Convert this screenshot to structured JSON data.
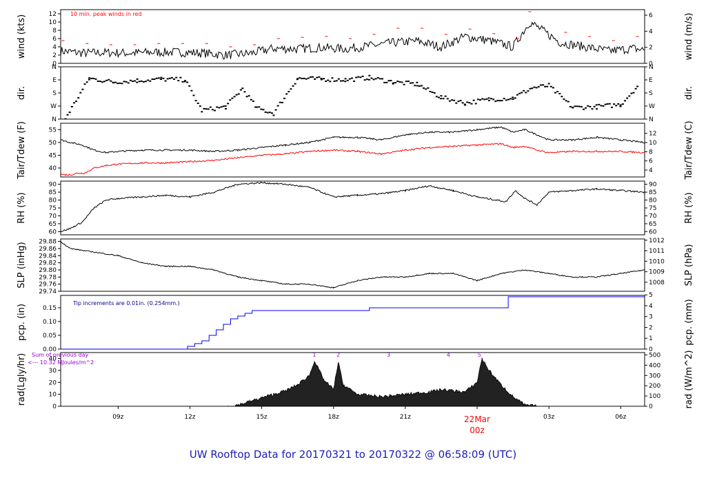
{
  "title": "UW Rooftop Data for 20170321  to  20170322 @ 06:58:09  (UTC)",
  "x_ticks": [
    {
      "label": "09z",
      "hour": 9
    },
    {
      "label": "12z",
      "hour": 12
    },
    {
      "label": "15z",
      "hour": 15
    },
    {
      "label": "18z",
      "hour": 18
    },
    {
      "label": "21z",
      "hour": 21
    },
    {
      "label": "03z",
      "hour": 27
    },
    {
      "label": "06z",
      "hour": 30
    }
  ],
  "date_marker": {
    "day": "22Mar",
    "hour_label": "00z",
    "hour": 24,
    "color": "#ff0000"
  },
  "colors": {
    "primary": "#000000",
    "peak": "#ff0000",
    "dewpoint": "#ff0000",
    "precip": "#0000ff",
    "precip_note": "#00008b",
    "rad_note": "#9400d3",
    "title": "#1c1cb8"
  },
  "chart_data": [
    {
      "id": "wind",
      "type": "line",
      "ylabel_left": "wind (kts)",
      "ylabel_right": "wind (m/s)",
      "note": "10 min. peak winds in red",
      "ylim": [
        0,
        13
      ],
      "left_ticks": [
        "0",
        "2",
        "4",
        "6",
        "8",
        "10",
        "12"
      ],
      "right_ylim": [
        0,
        6.69
      ],
      "right_ticks": [
        "0",
        "2",
        "4",
        "6"
      ],
      "series": [
        {
          "x": [
            6.6,
            7.5,
            8.5,
            9.5,
            10.5,
            11.5,
            12.5,
            13.5,
            14.5,
            15.5,
            16.5,
            17.5,
            18.5,
            19.5,
            20.5,
            21.5,
            22.5,
            23.5,
            24.5,
            25.5,
            26.2,
            27.5,
            28.5,
            29.5,
            30.5,
            31.0
          ],
          "values": [
            3.0,
            2.5,
            2.6,
            2.5,
            2.7,
            2.7,
            2.5,
            2.0,
            2.4,
            3.6,
            3.5,
            3.8,
            3.5,
            4.2,
            5.0,
            5.4,
            4.0,
            6.5,
            5.5,
            4.0,
            10.0,
            5.0,
            4.0,
            3.0,
            3.6,
            3.2
          ]
        }
      ],
      "peaks": {
        "x": [
          6.7,
          7.7,
          8.7,
          9.7,
          10.7,
          11.7,
          12.7,
          13.7,
          14.7,
          15.7,
          16.7,
          17.7,
          18.7,
          19.7,
          20.7,
          21.7,
          22.7,
          23.7,
          24.7,
          25.7,
          26.2,
          27.7,
          28.7,
          29.7,
          30.7
        ],
        "values": [
          5.5,
          4.8,
          4.5,
          4.5,
          4.8,
          4.8,
          4.8,
          4.0,
          4.5,
          6.0,
          6.3,
          6.5,
          6.0,
          7.0,
          8.5,
          8.5,
          7.0,
          8.3,
          7.2,
          6.0,
          12.5,
          7.5,
          6.5,
          5.5,
          6.5
        ]
      }
    },
    {
      "id": "dir",
      "type": "scatter",
      "ylabel_left": "dir.",
      "ylabel_right": "dir.",
      "ylim": [
        0,
        360
      ],
      "left_ticks": [
        "N",
        "W",
        "S",
        "E",
        "N"
      ],
      "right_ticks": [
        "N",
        "W",
        "S",
        "E",
        "N"
      ],
      "series": [
        {
          "x": [
            6.8,
            7.8,
            8.8,
            9.8,
            10.8,
            11.8,
            12.5,
            13.5,
            14.2,
            14.8,
            15.5,
            16.5,
            17.5,
            18.5,
            19.5,
            20.5,
            21.5,
            22.5,
            23.5,
            24.5,
            25.5,
            26.3,
            27.0,
            28.0,
            29.0,
            30.0,
            30.7
          ],
          "values": [
            5,
            280,
            255,
            265,
            275,
            270,
            60,
            85,
            210,
            75,
            40,
            280,
            275,
            270,
            285,
            255,
            240,
            150,
            110,
            135,
            145,
            215,
            230,
            80,
            85,
            100,
            225
          ]
        }
      ]
    },
    {
      "id": "temp",
      "type": "line",
      "ylabel_left": "Tair/Tdew (F)",
      "ylabel_right": "Tair/Tdew (C)",
      "ylim": [
        36.5,
        57.5
      ],
      "left_ticks": [
        "40",
        "45",
        "50",
        "55"
      ],
      "right_ylim": [
        2.5,
        14.2
      ],
      "right_ticks": [
        "4",
        "6",
        "8",
        "10",
        "12"
      ],
      "series": [
        {
          "x": [
            6.6,
            7.0,
            7.5,
            8.0,
            8.5,
            9.0,
            10.0,
            11.0,
            12.0,
            13.0,
            14.0,
            15.0,
            16.0,
            17.0,
            18.0,
            19.0,
            20.0,
            21.0,
            22.0,
            23.0,
            24.0,
            25.0,
            25.5,
            26.0,
            26.5,
            27.0,
            28.0,
            29.0,
            30.0,
            31.0
          ],
          "values": [
            51,
            50,
            49,
            47,
            46,
            46.5,
            47,
            47,
            47,
            46.5,
            47,
            48,
            49,
            50,
            52,
            52,
            51,
            53,
            54,
            54,
            55,
            56,
            54,
            55,
            53,
            51,
            51,
            52,
            51,
            50
          ]
        },
        {
          "x": [
            6.6,
            7.0,
            7.3,
            7.6,
            8.0,
            8.5,
            9.0,
            10.0,
            11.0,
            12.0,
            13.0,
            14.0,
            15.0,
            16.0,
            17.0,
            18.0,
            19.0,
            20.0,
            21.0,
            22.0,
            23.0,
            24.0,
            25.0,
            25.5,
            26.0,
            26.5,
            27.0,
            28.0,
            29.0,
            30.0,
            31.0
          ],
          "values": [
            37.5,
            37.3,
            38,
            38,
            40,
            41,
            41.5,
            42,
            42,
            42.5,
            43,
            44,
            45,
            45.5,
            46.5,
            47,
            46.5,
            45.5,
            47,
            48,
            48.5,
            49,
            49.5,
            48,
            48.5,
            47,
            46,
            46.5,
            46.5,
            46.5,
            46
          ]
        }
      ]
    },
    {
      "id": "rh",
      "type": "line",
      "ylabel_left": "RH (%)",
      "ylabel_right": "RH (%)",
      "ylim": [
        58,
        92
      ],
      "left_ticks": [
        "60",
        "65",
        "70",
        "75",
        "80",
        "85",
        "90"
      ],
      "right_ticks": [
        "60",
        "65",
        "70",
        "75",
        "80",
        "85",
        "90"
      ],
      "series": [
        {
          "x": [
            6.6,
            7.0,
            7.5,
            8.0,
            8.5,
            9.0,
            10.0,
            11.0,
            12.0,
            13.0,
            14.0,
            15.0,
            16.0,
            17.0,
            18.0,
            19.0,
            20.0,
            21.0,
            22.0,
            23.0,
            24.0,
            24.8,
            25.2,
            25.6,
            26.0,
            26.5,
            27.0,
            28.0,
            29.0,
            30.0,
            31.0
          ],
          "values": [
            60,
            62,
            66,
            75,
            80,
            81,
            82,
            83,
            82,
            85,
            90,
            91,
            90,
            88,
            82,
            83,
            84,
            86,
            89,
            86,
            82,
            80,
            79,
            86,
            81,
            77,
            85,
            86,
            87,
            86,
            85
          ]
        }
      ]
    },
    {
      "id": "slp",
      "type": "line",
      "ylabel_left": "SLP (inHg)",
      "ylabel_right": "SLP (hPa)",
      "ylim": [
        29.74,
        29.887
      ],
      "left_ticks": [
        "29.74",
        "29.76",
        "29.78",
        "29.80",
        "29.82",
        "29.84",
        "29.86",
        "29.88"
      ],
      "right_ylim": [
        1007.14,
        1012.12
      ],
      "right_ticks": [
        "1008",
        "1009",
        "1010",
        "1011",
        "1012"
      ],
      "series": [
        {
          "x": [
            6.6,
            7.0,
            8.0,
            9.0,
            10.0,
            11.0,
            12.0,
            13.0,
            14.0,
            15.0,
            16.0,
            17.0,
            18.0,
            19.0,
            20.0,
            21.0,
            22.0,
            23.0,
            24.0,
            25.0,
            26.0,
            27.0,
            28.0,
            29.0,
            30.0,
            31.0
          ],
          "values": [
            29.88,
            29.86,
            29.85,
            29.84,
            29.82,
            29.81,
            29.81,
            29.8,
            29.78,
            29.77,
            29.76,
            29.76,
            29.75,
            29.77,
            29.78,
            29.78,
            29.79,
            29.79,
            29.77,
            29.79,
            29.8,
            29.79,
            29.78,
            29.78,
            29.79,
            29.8
          ]
        }
      ]
    },
    {
      "id": "pcp",
      "type": "line",
      "ylabel_left": "pcp. (in)",
      "ylabel_right": "pcp. (mm)",
      "note": "Tip increments are 0.01in. (0.254mm.)",
      "ylim": [
        0,
        0.195
      ],
      "left_ticks": [
        "0.00",
        "0.05",
        "0.10",
        "0.15"
      ],
      "right_ylim": [
        0,
        4.95
      ],
      "right_ticks": [
        "0",
        "1",
        "2",
        "3",
        "4",
        "5"
      ],
      "series": [
        {
          "x": [
            6.6,
            11.6,
            11.9,
            12.2,
            12.5,
            12.8,
            13.1,
            13.4,
            13.7,
            14.0,
            14.3,
            14.6,
            14.9,
            15.5,
            19.5,
            25.0,
            25.3,
            31.0
          ],
          "values": [
            0.0,
            0.0,
            0.01,
            0.02,
            0.03,
            0.05,
            0.07,
            0.09,
            0.11,
            0.12,
            0.13,
            0.14,
            0.14,
            0.14,
            0.15,
            0.15,
            0.19,
            0.19
          ]
        }
      ]
    },
    {
      "id": "rad",
      "type": "area",
      "ylabel_left": "rad(Lgly/hr)",
      "ylabel_right": "rad (W/m^2)",
      "note": "Sum of previous day",
      "note2": "<--- 10.32 MJoules/m^2",
      "ylim": [
        0,
        45
      ],
      "left_ticks": [
        "0",
        "10",
        "20",
        "30",
        "40"
      ],
      "right_ylim": [
        0,
        523
      ],
      "right_ticks": [
        "0",
        "100",
        "200",
        "300",
        "400",
        "500"
      ],
      "markers": [
        {
          "label": "1",
          "x": 17.2
        },
        {
          "label": "2",
          "x": 18.2
        },
        {
          "label": "3",
          "x": 20.3
        },
        {
          "label": "4",
          "x": 22.8
        },
        {
          "label": "5",
          "x": 24.1
        }
      ],
      "series": [
        {
          "x": [
            13.6,
            14.0,
            14.5,
            15.0,
            15.5,
            16.0,
            16.5,
            17.0,
            17.2,
            17.4,
            17.6,
            18.0,
            18.2,
            18.4,
            19.0,
            20.0,
            21.0,
            22.0,
            22.5,
            23.0,
            23.5,
            24.0,
            24.2,
            24.5,
            25.0,
            25.5,
            26.0,
            26.5
          ],
          "values": [
            0,
            1,
            4,
            7,
            10,
            13,
            18,
            26,
            38,
            30,
            22,
            14,
            37,
            18,
            10,
            8,
            10,
            12,
            14,
            13,
            12,
            20,
            40,
            30,
            18,
            8,
            1,
            0
          ]
        }
      ]
    }
  ]
}
